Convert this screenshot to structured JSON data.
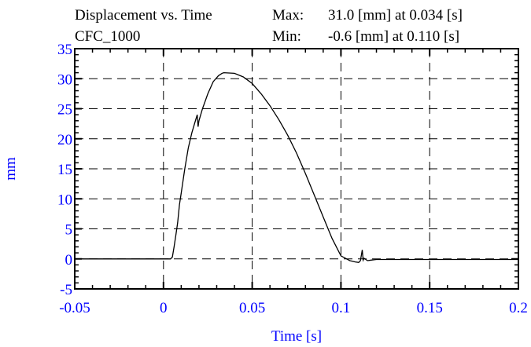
{
  "header": {
    "title": "Displacement vs. Time",
    "filter": "CFC_1000",
    "max_label": "Max:",
    "max_value": "31.0 [mm] at 0.034 [s]",
    "min_label": "Min:",
    "min_value": "-0.6 [mm] at 0.110 [s]"
  },
  "chart_data": {
    "type": "line",
    "title": "Displacement vs. Time",
    "xlabel": "Time [s]",
    "ylabel": "mm",
    "xlim": [
      -0.05,
      0.2
    ],
    "ylim": [
      -5,
      35
    ],
    "x_ticks": [
      -0.05,
      0,
      0.05,
      0.1,
      0.15,
      0.2
    ],
    "x_tick_labels": [
      "-0.05",
      "0",
      "0.05",
      "0.1",
      "0.15",
      "0.2"
    ],
    "y_ticks": [
      -5,
      0,
      5,
      10,
      15,
      20,
      25,
      30,
      35
    ],
    "y_tick_labels": [
      "-5",
      "0",
      "5",
      "10",
      "15",
      "20",
      "25",
      "30",
      "35"
    ],
    "grid": true,
    "grid_style": "dashed",
    "axis_label_color": "#0000ff",
    "line_color": "#000000",
    "series": [
      {
        "x": [
          -0.05,
          0.0,
          0.004,
          0.005,
          0.006,
          0.007,
          0.008,
          0.009,
          0.01,
          0.012,
          0.014,
          0.016,
          0.018,
          0.019,
          0.0195,
          0.02,
          0.022,
          0.025,
          0.028,
          0.031,
          0.033,
          0.034,
          0.04,
          0.045,
          0.05,
          0.055,
          0.06,
          0.065,
          0.07,
          0.075,
          0.08,
          0.085,
          0.09,
          0.095,
          0.1,
          0.105,
          0.108,
          0.11,
          0.111,
          0.112,
          0.1125,
          0.113,
          0.115,
          0.117,
          0.12,
          0.15,
          0.2
        ],
        "y": [
          0,
          0,
          0,
          0.3,
          2,
          4,
          6,
          9,
          11,
          15,
          18.5,
          21,
          23,
          24,
          22,
          23,
          25,
          27.5,
          29.5,
          30.5,
          30.9,
          31.0,
          30.9,
          30.3,
          29.2,
          27.5,
          25.5,
          23.2,
          20.6,
          17.6,
          14.2,
          10.6,
          7.0,
          3.4,
          0.5,
          -0.3,
          -0.5,
          -0.6,
          -0.3,
          1.5,
          -0.2,
          0.1,
          -0.3,
          -0.2,
          -0.1,
          -0.1,
          -0.1
        ]
      }
    ]
  }
}
